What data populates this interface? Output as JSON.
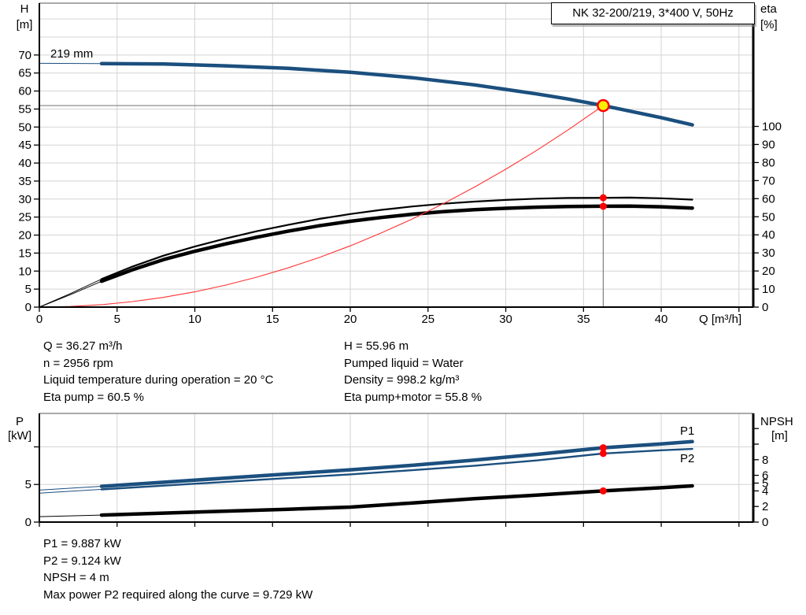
{
  "title_box": {
    "label": "NK 32-200/219, 3*400 V, 50Hz"
  },
  "colors": {
    "curve_blue": "#1b4f7e",
    "label_blue": "#2a5d8c",
    "curve_black": "#000000",
    "system_red": "#ff3333",
    "dot_red": "#ff0000",
    "marker_yellow": "#ffed00",
    "guide_gray": "#808080",
    "grid_gray": "#d4d4d4"
  },
  "info_top": {
    "left": [
      "Q = 36.27 m³/h",
      "n = 2956 rpm",
      "Liquid temperature during operation = 20 °C",
      "Eta pump = 60.5 %"
    ],
    "right": [
      "H = 55.96 m",
      "Pumped liquid = Water",
      "Density = 998.2 kg/m³",
      "Eta pump+motor = 55.8 %"
    ]
  },
  "info_bottom": [
    "P1 = 9.887 kW",
    "P2 = 9.124 kW",
    "NPSH = 4 m",
    "Max power P2 required along the curve = 9.729 kW"
  ],
  "chart_data": [
    {
      "type": "line",
      "title": "NK 32-200/219, 3*400 V, 50Hz",
      "impeller_label": "219 mm",
      "x_axis": {
        "title": "Q [m³/h]",
        "range": [
          0,
          45.92
        ],
        "labels": [
          0,
          5,
          10,
          15,
          20,
          25,
          30,
          35,
          40
        ],
        "tick_marks": [
          0,
          5,
          10,
          15,
          20,
          25,
          30,
          35,
          40,
          45
        ],
        "gridlines": [
          5,
          10,
          15,
          20,
          25,
          30,
          35,
          40,
          45
        ]
      },
      "left_axis": {
        "title": [
          "H",
          "[m]"
        ],
        "range": [
          0,
          84.4
        ],
        "ticks": [
          0,
          5,
          10,
          15,
          20,
          25,
          30,
          35,
          40,
          45,
          50,
          55,
          60,
          65,
          70
        ],
        "unlabeled_ticks": [],
        "gridlines": [
          5,
          10,
          15,
          20,
          25,
          30,
          35,
          40,
          45,
          50,
          55,
          60,
          65,
          70,
          75,
          80
        ]
      },
      "right_axis": {
        "title": [
          "eta",
          "[%]"
        ],
        "range": [
          0,
          168.2
        ],
        "ticks": [
          0,
          10,
          20,
          30,
          40,
          50,
          60,
          70,
          80,
          90,
          100
        ],
        "unlabeled_ticks": [],
        "gridlines": []
      },
      "series": [
        {
          "name": "head-curve",
          "axis": "left",
          "color": "#1b4f7e",
          "width": 4.5,
          "lead_until": 4,
          "points": [
            [
              0,
              67.7
            ],
            [
              4,
              67.6
            ],
            [
              8,
              67.5
            ],
            [
              12,
              67.0
            ],
            [
              16,
              66.3
            ],
            [
              20,
              65.2
            ],
            [
              24,
              63.7
            ],
            [
              28,
              61.7
            ],
            [
              32,
              59.2
            ],
            [
              34,
              57.8
            ],
            [
              36.27,
              55.96
            ],
            [
              38,
              54.4
            ],
            [
              40,
              52.6
            ],
            [
              42,
              50.6
            ]
          ]
        },
        {
          "name": "eta-pump-curve",
          "axis": "right",
          "color": "#000000",
          "width": 2.2,
          "lead_until": 4,
          "points": [
            [
              0,
              0
            ],
            [
              2,
              7.5
            ],
            [
              4,
              15.5
            ],
            [
              6,
              22.5
            ],
            [
              8,
              28.5
            ],
            [
              10,
              33.5
            ],
            [
              12,
              38
            ],
            [
              14,
              42
            ],
            [
              16,
              45.5
            ],
            [
              18,
              48.8
            ],
            [
              20,
              51.5
            ],
            [
              22,
              53.8
            ],
            [
              24,
              55.7
            ],
            [
              26,
              57.2
            ],
            [
              28,
              58.4
            ],
            [
              30,
              59.3
            ],
            [
              32,
              60.0
            ],
            [
              34,
              60.4
            ],
            [
              36.27,
              60.5
            ],
            [
              38,
              60.6
            ],
            [
              40,
              60.2
            ],
            [
              42,
              59.5
            ]
          ]
        },
        {
          "name": "eta-pump-motor-curve",
          "axis": "right",
          "color": "#000000",
          "width": 4.5,
          "lead_until": 4,
          "points": [
            [
              0,
              0
            ],
            [
              2,
              6.9
            ],
            [
              4,
              14.3
            ],
            [
              6,
              20.7
            ],
            [
              8,
              26.3
            ],
            [
              10,
              30.9
            ],
            [
              12,
              35
            ],
            [
              14,
              38.7
            ],
            [
              16,
              42
            ],
            [
              18,
              45
            ],
            [
              20,
              47.5
            ],
            [
              22,
              49.6
            ],
            [
              24,
              51.4
            ],
            [
              26,
              52.8
            ],
            [
              28,
              53.9
            ],
            [
              30,
              54.7
            ],
            [
              32,
              55.3
            ],
            [
              34,
              55.7
            ],
            [
              36.27,
              55.8
            ],
            [
              38,
              55.9
            ],
            [
              40,
              55.5
            ],
            [
              42,
              54.8
            ]
          ]
        },
        {
          "name": "system-curve",
          "axis": "left",
          "color": "#ff3333",
          "width": 1.1,
          "points": [
            [
              0,
              0
            ],
            [
              2,
              0.17
            ],
            [
              4,
              0.68
            ],
            [
              6,
              1.53
            ],
            [
              8,
              2.72
            ],
            [
              10,
              4.25
            ],
            [
              12,
              6.13
            ],
            [
              14,
              8.34
            ],
            [
              16,
              10.89
            ],
            [
              18,
              13.78
            ],
            [
              20,
              17.01
            ],
            [
              22,
              20.59
            ],
            [
              24,
              24.5
            ],
            [
              26,
              28.76
            ],
            [
              28,
              33.35
            ],
            [
              30,
              38.28
            ],
            [
              32,
              43.56
            ],
            [
              34,
              49.17
            ],
            [
              36.27,
              55.96
            ]
          ]
        }
      ],
      "duty_point": {
        "q": 36.27,
        "h": 55.96,
        "eta_pump": 60.5,
        "eta_pump_motor": 55.8
      }
    },
    {
      "type": "line",
      "x_axis": {
        "title": "",
        "range": [
          0,
          45.92
        ],
        "labels": [],
        "tick_marks": [
          0,
          5,
          10,
          15,
          20,
          25,
          30,
          35,
          40,
          45
        ],
        "gridlines": [
          5,
          10,
          15,
          20,
          25,
          30,
          35,
          40,
          45
        ]
      },
      "left_axis": {
        "title": [
          "P",
          "[kW]"
        ],
        "range": [
          0,
          14.45
        ],
        "ticks": [
          0,
          5
        ],
        "unlabeled_ticks": [
          10
        ],
        "gridlines": [
          5,
          10
        ]
      },
      "right_axis": {
        "title": [
          "NPSH",
          "[m]"
        ],
        "range": [
          0,
          13.94
        ],
        "ticks": [
          0,
          2,
          4,
          5,
          6,
          8
        ],
        "unlabeled_ticks": [
          10,
          12
        ],
        "gridlines": []
      },
      "series": [
        {
          "name": "p1-curve",
          "label": "P1",
          "axis": "left",
          "color": "#1b4f7e",
          "width": 4.5,
          "lead_until": 4,
          "points": [
            [
              0,
              4.25
            ],
            [
              4,
              4.75
            ],
            [
              8,
              5.3
            ],
            [
              12,
              5.85
            ],
            [
              16,
              6.4
            ],
            [
              20,
              6.95
            ],
            [
              24,
              7.55
            ],
            [
              28,
              8.25
            ],
            [
              32,
              9.0
            ],
            [
              36.27,
              9.887
            ],
            [
              40,
              10.4
            ],
            [
              42,
              10.7
            ]
          ]
        },
        {
          "name": "p2-curve",
          "label": "P2",
          "axis": "left",
          "color": "#1b4f7e",
          "width": 2.4,
          "lead_until": 4,
          "points": [
            [
              0,
              3.85
            ],
            [
              4,
              4.35
            ],
            [
              8,
              4.85
            ],
            [
              12,
              5.35
            ],
            [
              16,
              5.85
            ],
            [
              20,
              6.35
            ],
            [
              24,
              6.9
            ],
            [
              28,
              7.5
            ],
            [
              32,
              8.2
            ],
            [
              36.27,
              9.124
            ],
            [
              40,
              9.55
            ],
            [
              42,
              9.729
            ]
          ]
        },
        {
          "name": "npsh-curve",
          "axis": "right",
          "color": "#000000",
          "width": 4.5,
          "lead_until": 4,
          "points": [
            [
              0,
              0.7
            ],
            [
              4,
              0.9
            ],
            [
              8,
              1.15
            ],
            [
              12,
              1.4
            ],
            [
              16,
              1.65
            ],
            [
              20,
              1.92
            ],
            [
              24,
              2.45
            ],
            [
              28,
              3.0
            ],
            [
              32,
              3.45
            ],
            [
              36.27,
              4.0
            ],
            [
              40,
              4.4
            ],
            [
              42,
              4.65
            ]
          ]
        }
      ],
      "duty_markers": [
        {
          "q": 36.27,
          "value": 9.887,
          "axis": "left"
        },
        {
          "q": 36.27,
          "value": 9.124,
          "axis": "left"
        },
        {
          "q": 36.27,
          "value": 4,
          "axis": "right"
        }
      ]
    }
  ]
}
